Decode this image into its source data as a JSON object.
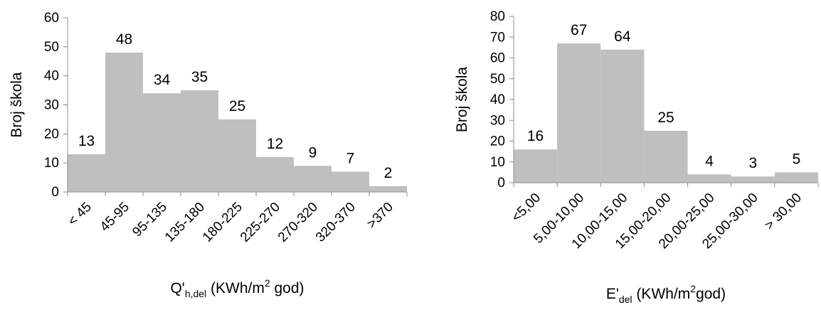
{
  "chart_data": [
    {
      "type": "bar",
      "categories": [
        "< 45",
        "45-95",
        "95-135",
        "135-180",
        "180-225",
        "225-270",
        "270-320",
        "320-370",
        ">370"
      ],
      "values": [
        13,
        48,
        34,
        35,
        25,
        12,
        9,
        7,
        2
      ],
      "ylabel": "Broj škola",
      "xlabel": {
        "main": "Q'",
        "sub": "h,del",
        "unit_pre": " (KWh/m",
        "sup": "2",
        "unit_post": " god)"
      },
      "ylim": [
        0,
        60
      ],
      "yticks": [
        0,
        10,
        20,
        30,
        40,
        50,
        60
      ],
      "color": "#bfbfbf",
      "grid": false
    },
    {
      "type": "bar",
      "categories": [
        "<5,00",
        "5,00-10,00",
        "10,00-15,00",
        "15,00-20,00",
        "20,00-25,00",
        "25,00-30,00",
        "> 30,00"
      ],
      "values": [
        16,
        67,
        64,
        25,
        4,
        3,
        5
      ],
      "ylabel": "Broj škola",
      "xlabel": {
        "main": "E'",
        "sub": "del",
        "unit_pre": " (KWh/m",
        "sup": "2",
        "unit_post": "god)"
      },
      "ylim": [
        0,
        80
      ],
      "yticks": [
        0,
        10,
        20,
        30,
        40,
        50,
        60,
        70,
        80
      ],
      "color": "#bfbfbf",
      "grid": false
    }
  ]
}
